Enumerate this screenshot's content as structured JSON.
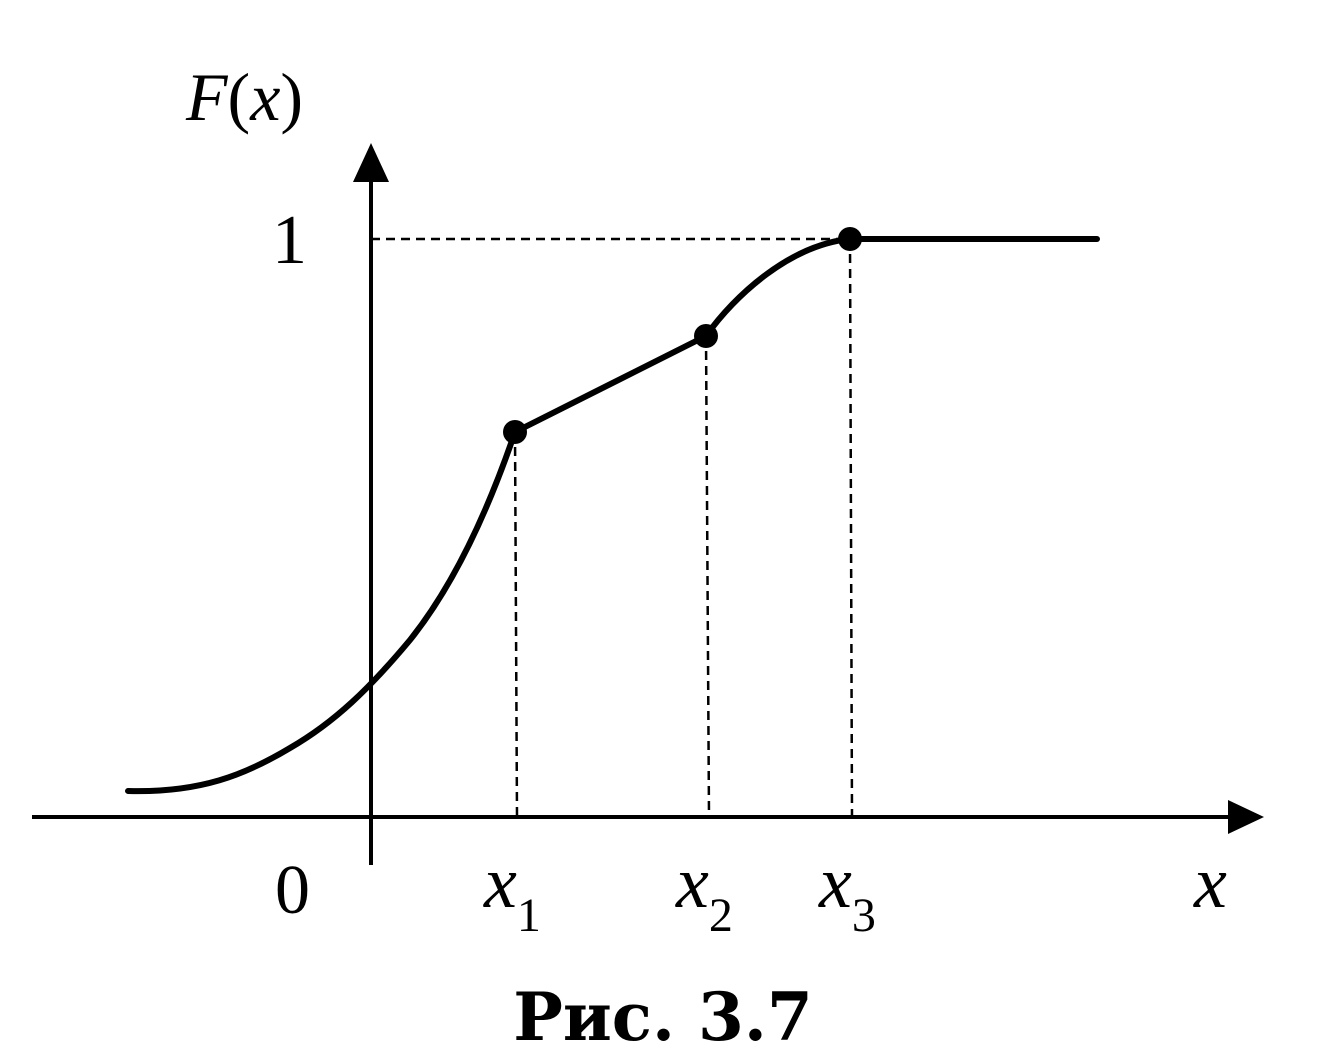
{
  "figure": {
    "y_axis_label": {
      "main": "F",
      "open": "(",
      "var": "x",
      "close": ")"
    },
    "x_axis_label": "x",
    "origin_label": "0",
    "level_one_label": "1",
    "points": [
      {
        "name": "x",
        "sub": "1"
      },
      {
        "name": "x",
        "sub": "2"
      },
      {
        "name": "x",
        "sub": "3"
      }
    ],
    "caption": "Рис. 3.7",
    "colors": {
      "ink": "#000000",
      "background": "#ffffff"
    }
  }
}
